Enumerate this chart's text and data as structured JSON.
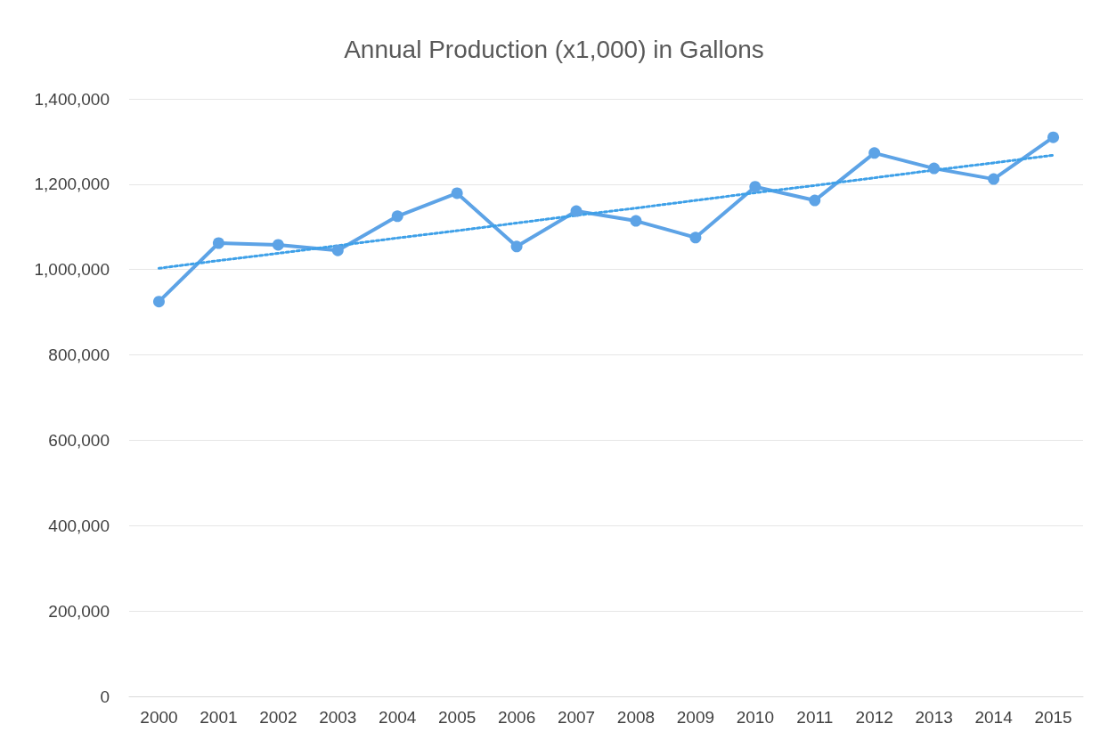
{
  "chart_data": {
    "type": "line",
    "title": "Annual Production (x1,000) in Gallons",
    "categories": [
      "2000",
      "2001",
      "2002",
      "2003",
      "2004",
      "2005",
      "2006",
      "2007",
      "2008",
      "2009",
      "2010",
      "2011",
      "2012",
      "2013",
      "2014",
      "2015"
    ],
    "series": [
      {
        "color": "#5da3e6",
        "marker": "circle",
        "line_style": "solid",
        "values": [
          925000,
          1062000,
          1058000,
          1045000,
          1125000,
          1179000,
          1054000,
          1137000,
          1114000,
          1075000,
          1194000,
          1162000,
          1273000,
          1237000,
          1212000,
          1310000
        ]
      },
      {
        "type": "line",
        "color": "#3ea0e8",
        "marker": "none",
        "line_style": "dotted",
        "values": [
          1003000,
          1021000,
          1038000,
          1056000,
          1074000,
          1091000,
          1109000,
          1127000,
          1144000,
          1162000,
          1180000,
          1197000,
          1215000,
          1233000,
          1250000,
          1268000
        ]
      }
    ],
    "ylim": [
      0,
      1400000
    ],
    "yticks": [
      0,
      {
        "value": 200000,
        "label": "200,000"
      },
      {
        "value": 400000,
        "label": "400,000"
      },
      {
        "value": 600000,
        "label": "600,000"
      },
      {
        "value": 800000,
        "label": "800,000"
      },
      {
        "value": 1000000,
        "label": "1,000,000"
      },
      {
        "value": 1200000,
        "label": "1,200,000"
      },
      {
        "value": 1400000,
        "label": "1,400,000"
      }
    ],
    "grid": "y"
  }
}
